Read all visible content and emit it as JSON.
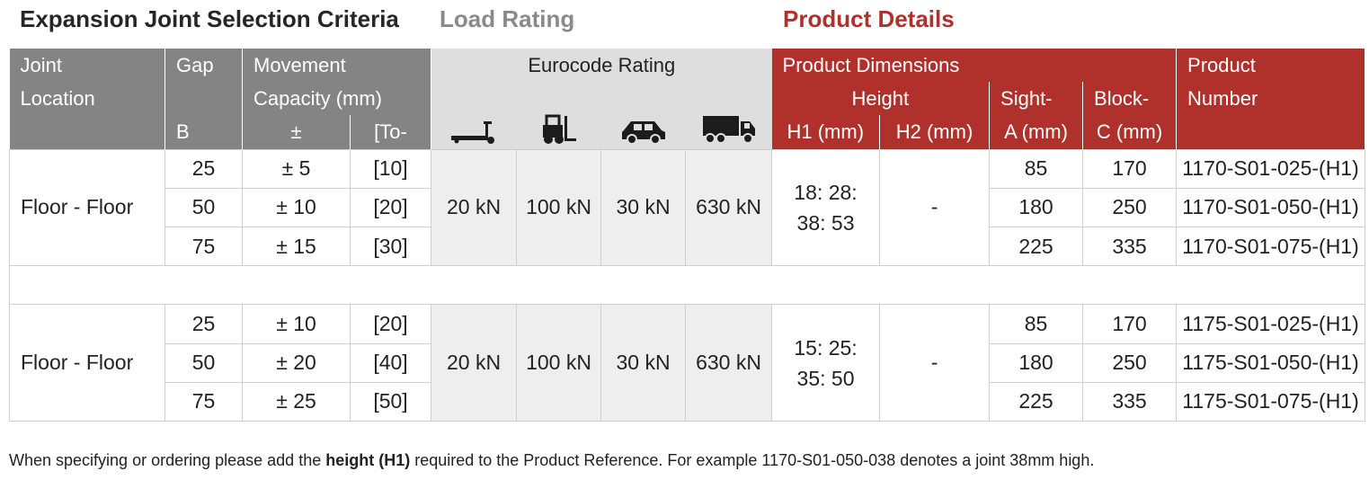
{
  "titles": {
    "criteria": "Expansion Joint Selection Criteria",
    "load": "Load Rating",
    "product": "Product Details"
  },
  "headers": {
    "joint_location": [
      "Joint",
      "Location"
    ],
    "gap": [
      "Gap",
      "B"
    ],
    "movement": [
      "Movement",
      "Capacity (mm)"
    ],
    "movement_sub_pm": "±",
    "movement_sub_to": "[To-",
    "eurocode": "Eurocode Rating",
    "eurocode_icons": [
      "pallet-truck-icon",
      "forklift-icon",
      "car-icon",
      "truck-icon"
    ],
    "product_dimensions": "Product Dimensions",
    "height": "Height",
    "h1": "H1 (mm)",
    "h2": "H2 (mm)",
    "sight": [
      "Sight-",
      "A (mm)"
    ],
    "block": [
      "Block-",
      "C (mm)"
    ],
    "product_number": [
      "Product",
      "Number"
    ]
  },
  "groups": [
    {
      "location": "Floor - Floor",
      "load": [
        "20 kN",
        "100 kN",
        "30 kN",
        "630 kN"
      ],
      "h1": [
        "18: 28:",
        "38: 53"
      ],
      "h2": "-",
      "rows": [
        {
          "gap": "25",
          "movement": "± 5",
          "to": "[10]",
          "sight": "85",
          "block": "170",
          "product": "1170-S01-025-(H1)"
        },
        {
          "gap": "50",
          "movement": "± 10",
          "to": "[20]",
          "sight": "180",
          "block": "250",
          "product": "1170-S01-050-(H1)"
        },
        {
          "gap": "75",
          "movement": "± 15",
          "to": "[30]",
          "sight": "225",
          "block": "335",
          "product": "1170-S01-075-(H1)"
        }
      ]
    },
    {
      "location": "Floor - Floor",
      "load": [
        "20 kN",
        "100 kN",
        "30 kN",
        "630 kN"
      ],
      "h1": [
        "15: 25:",
        "35: 50"
      ],
      "h2": "-",
      "rows": [
        {
          "gap": "25",
          "movement": "± 10",
          "to": "[20]",
          "sight": "85",
          "block": "170",
          "product": "1175-S01-025-(H1)"
        },
        {
          "gap": "50",
          "movement": "± 20",
          "to": "[40]",
          "sight": "180",
          "block": "250",
          "product": "1175-S01-050-(H1)"
        },
        {
          "gap": "75",
          "movement": "± 25",
          "to": "[50]",
          "sight": "225",
          "block": "335",
          "product": "1175-S01-075-(H1)"
        }
      ]
    }
  ],
  "footnote": {
    "before": "When specifying or ordering please add the ",
    "bold": "height (H1)",
    "after": " required to the Product Reference. For example 1170-S01-050-038 denotes a joint 38mm high."
  },
  "colors": {
    "header_grey": "#848484",
    "header_light": "#dedede",
    "header_red": "#b0312b",
    "load_bg": "#eeeeee"
  }
}
